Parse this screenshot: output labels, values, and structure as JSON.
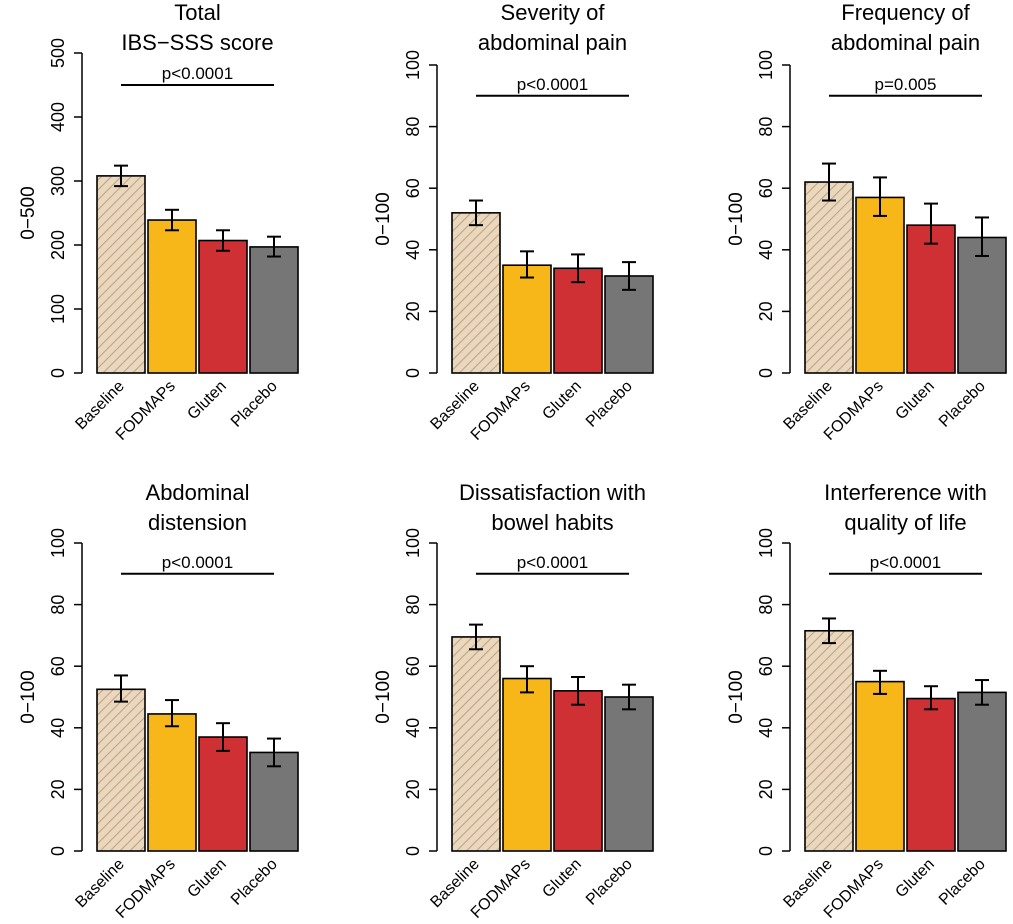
{
  "colors": {
    "Baseline": "#e8d8bf",
    "Baseline_hatch": "#c9a27a",
    "FODMAPs": "#f7b718",
    "Gluten": "#cf3034",
    "Placebo": "#767676"
  },
  "chart_data": [
    {
      "type": "bar",
      "title_lines": [
        "Total",
        "IBS−SSS score"
      ],
      "ylabel": "0−500",
      "ylim": [
        0,
        500
      ],
      "yticks": [
        0,
        100,
        200,
        300,
        400,
        500
      ],
      "categories": [
        "Baseline",
        "FODMAPs",
        "Gluten",
        "Placebo"
      ],
      "values": [
        308,
        239,
        207,
        197
      ],
      "err_low": [
        292,
        223,
        191,
        182
      ],
      "err_high": [
        324,
        255,
        223,
        213
      ],
      "pvalue": "p<0.0001"
    },
    {
      "type": "bar",
      "title_lines": [
        "Severity of",
        "abdominal pain"
      ],
      "ylabel": "0−100",
      "ylim": [
        0,
        100
      ],
      "yticks": [
        0,
        20,
        40,
        60,
        80,
        100
      ],
      "categories": [
        "Baseline",
        "FODMAPs",
        "Gluten",
        "Placebo"
      ],
      "values": [
        52,
        35,
        34,
        31.5
      ],
      "err_low": [
        48,
        31,
        29.5,
        27
      ],
      "err_high": [
        56,
        39.5,
        38.5,
        36
      ],
      "pvalue": "p<0.0001"
    },
    {
      "type": "bar",
      "title_lines": [
        "Frequency of",
        "abdominal pain"
      ],
      "ylabel": "0−100",
      "ylim": [
        0,
        100
      ],
      "yticks": [
        0,
        20,
        40,
        60,
        80,
        100
      ],
      "categories": [
        "Baseline",
        "FODMAPs",
        "Gluten",
        "Placebo"
      ],
      "values": [
        62,
        57,
        48,
        44
      ],
      "err_low": [
        56,
        51,
        42,
        38
      ],
      "err_high": [
        68,
        63.5,
        55,
        50.5
      ],
      "pvalue": "p=0.005"
    },
    {
      "type": "bar",
      "title_lines": [
        "Abdominal",
        "distension"
      ],
      "ylabel": "0−100",
      "ylim": [
        0,
        100
      ],
      "yticks": [
        0,
        20,
        40,
        60,
        80,
        100
      ],
      "categories": [
        "Baseline",
        "FODMAPs",
        "Gluten",
        "Placebo"
      ],
      "values": [
        52.5,
        44.5,
        37,
        32
      ],
      "err_low": [
        48.5,
        40.5,
        32.5,
        27.5
      ],
      "err_high": [
        57,
        49,
        41.5,
        36.5
      ],
      "pvalue": "p<0.0001"
    },
    {
      "type": "bar",
      "title_lines": [
        "Dissatisfaction with",
        "bowel habits"
      ],
      "ylabel": "0−100",
      "ylim": [
        0,
        100
      ],
      "yticks": [
        0,
        20,
        40,
        60,
        80,
        100
      ],
      "categories": [
        "Baseline",
        "FODMAPs",
        "Gluten",
        "Placebo"
      ],
      "values": [
        69.5,
        56,
        52,
        50
      ],
      "err_low": [
        65.5,
        51.5,
        47.5,
        46
      ],
      "err_high": [
        73.5,
        60,
        56.5,
        54
      ],
      "pvalue": "p<0.0001"
    },
    {
      "type": "bar",
      "title_lines": [
        "Interference with",
        "quality of life"
      ],
      "ylabel": "0−100",
      "ylim": [
        0,
        100
      ],
      "yticks": [
        0,
        20,
        40,
        60,
        80,
        100
      ],
      "categories": [
        "Baseline",
        "FODMAPs",
        "Gluten",
        "Placebo"
      ],
      "values": [
        71.5,
        55,
        49.5,
        51.5
      ],
      "err_low": [
        67.5,
        51,
        46,
        47.5
      ],
      "err_high": [
        75.5,
        58.5,
        53.5,
        55.5
      ],
      "pvalue": "p<0.0001"
    }
  ]
}
